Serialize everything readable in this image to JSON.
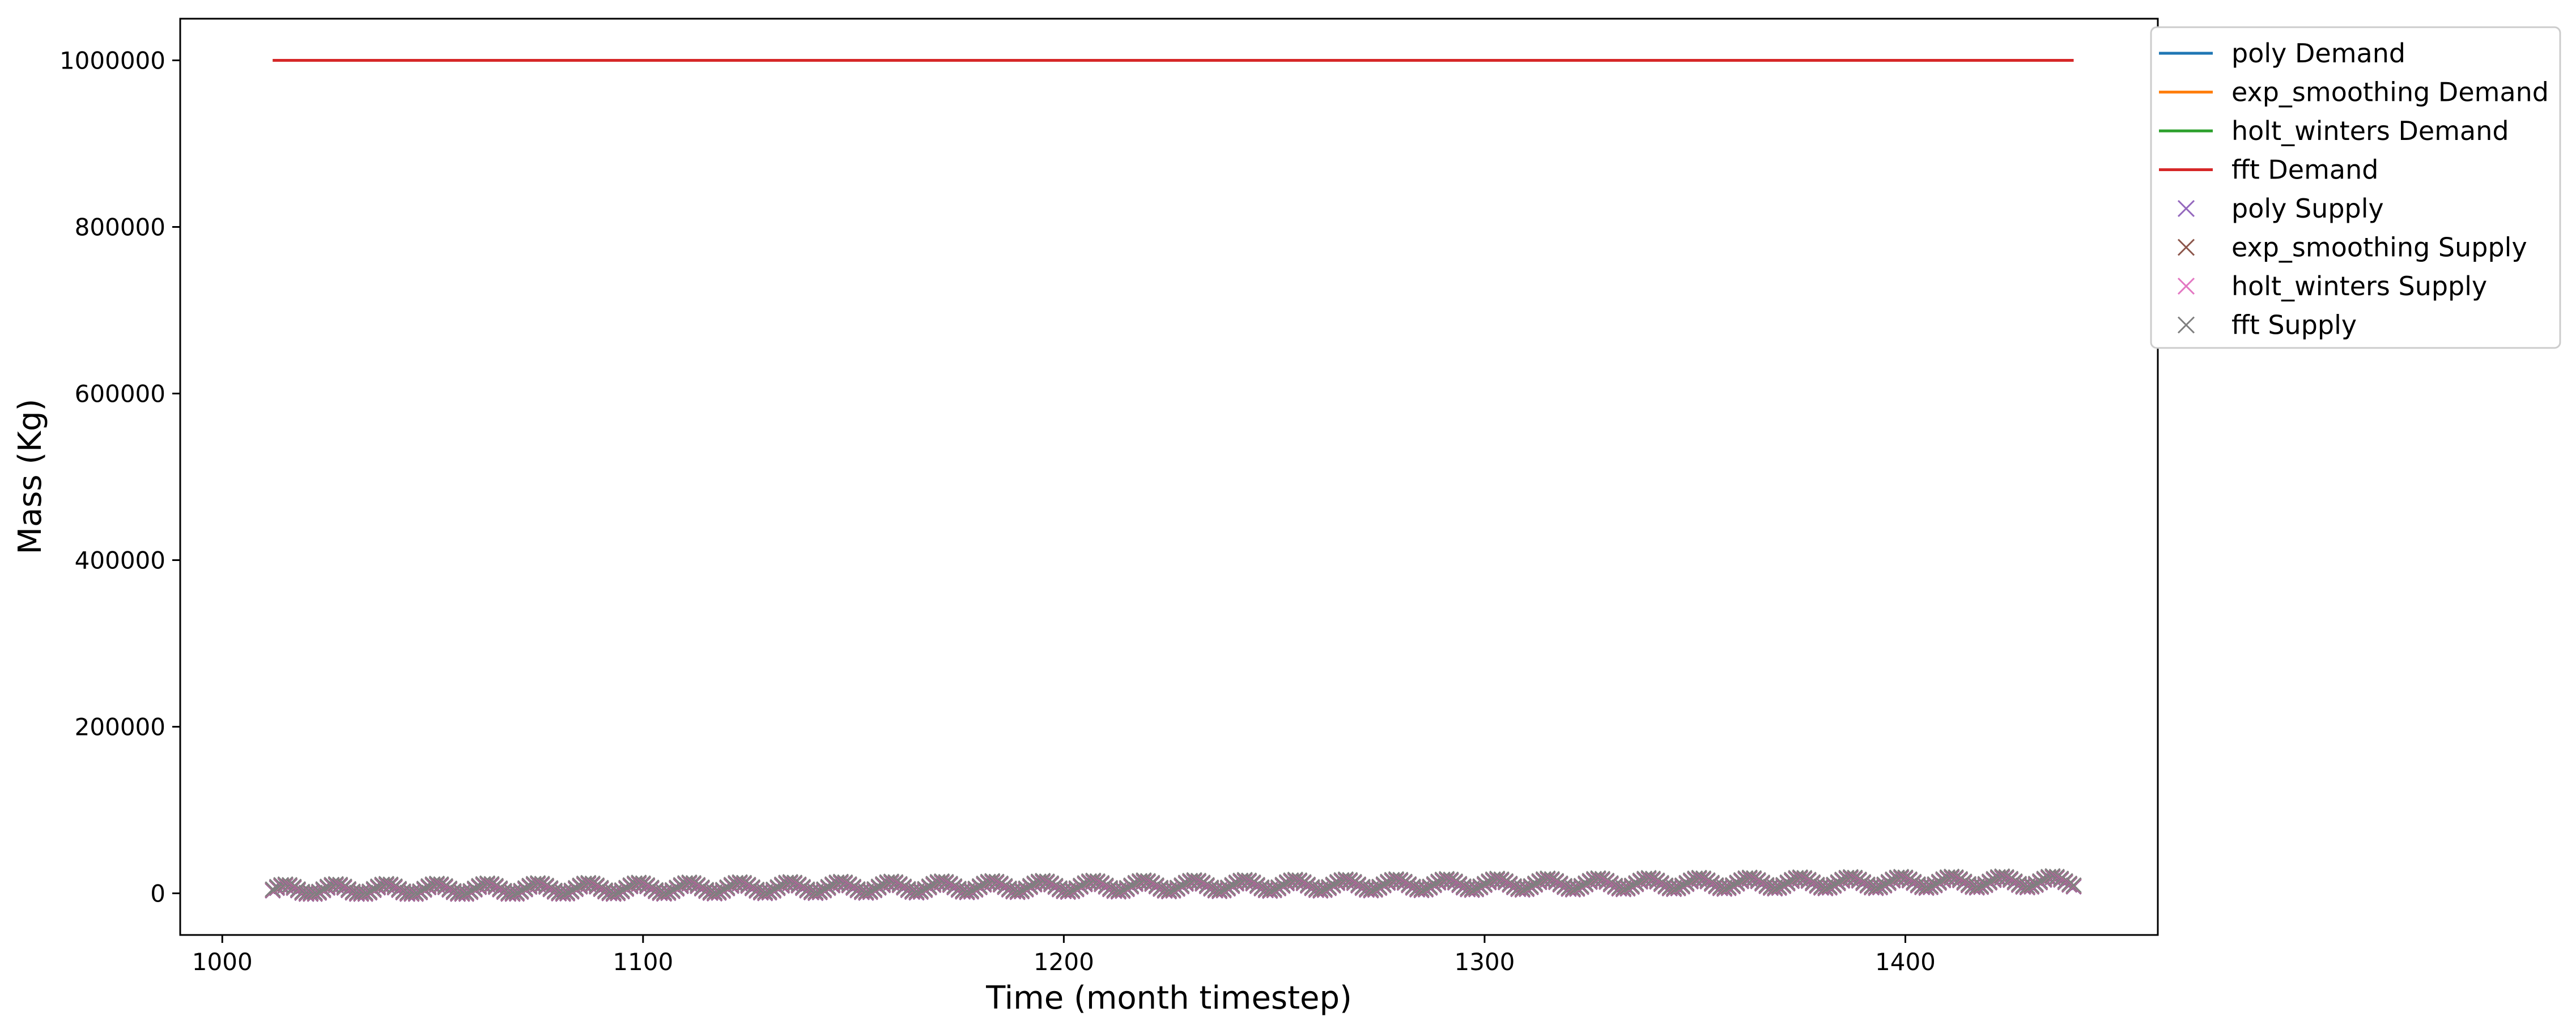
{
  "chart_data": {
    "type": "line",
    "title": "",
    "xlabel": "Time (month timestep)",
    "ylabel": "Mass (Kg)",
    "xlim": [
      990,
      1460
    ],
    "ylim": [
      -50000,
      1050000
    ],
    "xticks": [
      1000,
      1100,
      1200,
      1300,
      1400
    ],
    "yticks": [
      0,
      200000,
      400000,
      600000,
      800000,
      1000000
    ],
    "grid": false,
    "legend_position": "outside-top-right",
    "demand_series": [
      {
        "name": "poly Demand",
        "color": "#1f77b4",
        "x": [
          1012,
          1440
        ],
        "y": [
          1000000,
          1000000
        ]
      },
      {
        "name": "exp_smoothing Demand",
        "color": "#ff7f0e",
        "x": [
          1012,
          1440
        ],
        "y": [
          1000000,
          1000000
        ]
      },
      {
        "name": "holt_winters Demand",
        "color": "#2ca02c",
        "x": [
          1012,
          1440
        ],
        "y": [
          1000000,
          1000000
        ]
      },
      {
        "name": "fft Demand",
        "color": "#d62728",
        "x": [
          1012,
          1440
        ],
        "y": [
          1000000,
          1000000
        ]
      }
    ],
    "supply_series": [
      {
        "name": "poly Supply",
        "color": "#9467bd",
        "marker": "x"
      },
      {
        "name": "exp_smoothing Supply",
        "color": "#8c564b",
        "marker": "x"
      },
      {
        "name": "holt_winters Supply",
        "color": "#e377c2",
        "marker": "x"
      },
      {
        "name": "fft Supply",
        "color": "#7f7f7f",
        "marker": "x"
      }
    ],
    "supply_points": {
      "x_start": 1012,
      "x_end": 1440,
      "x_step": 1,
      "y_start": 4000,
      "y_end": 14000,
      "seasonal_amplitude": 6000,
      "period_months": 12
    }
  }
}
